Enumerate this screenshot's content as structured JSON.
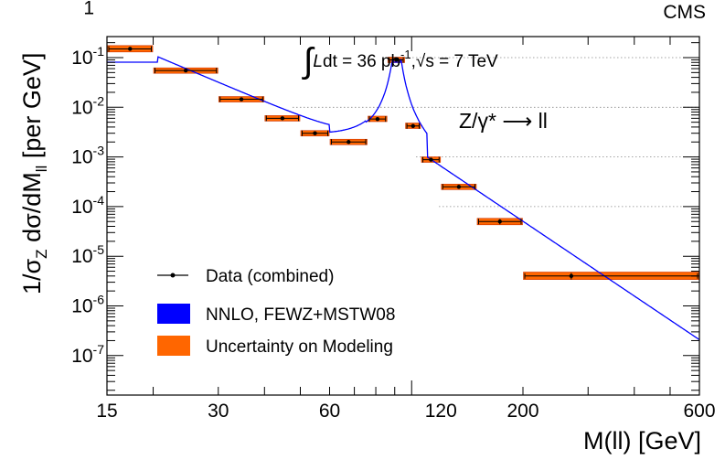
{
  "chart_data": {
    "type": "scatter",
    "corner_label": "CMS",
    "xlabel": "M(ll)  [GeV]",
    "ylabel_parts": {
      "a": "1/σ",
      "b": "Z",
      "c": " dσ/dM",
      "d": "ll",
      "e": " [per GeV]"
    },
    "annotation_lumi": {
      "integral": "∫",
      "L": "L",
      "rest": "dt = 36 pb",
      "sup": "-1",
      "sqrt_pre": ",",
      "sqrt_s": "√s",
      "tail": " = 7 TeV"
    },
    "annotation_process": "Z/γ* ⟶ ll",
    "x_scale": "log",
    "y_scale": "log",
    "xlim": [
      15,
      600
    ],
    "ylim": [
      3e-08,
      1
    ],
    "x_ticks": [
      15,
      30,
      60,
      120,
      200,
      600
    ],
    "y_ticks": [
      {
        "value": 1,
        "base": "1",
        "exp": ""
      },
      {
        "value": 0.1,
        "base": "10",
        "exp": "-1"
      },
      {
        "value": 0.01,
        "base": "10",
        "exp": "-2"
      },
      {
        "value": 0.001,
        "base": "10",
        "exp": "-3"
      },
      {
        "value": 0.0001,
        "base": "10",
        "exp": "-4"
      },
      {
        "value": 1e-05,
        "base": "10",
        "exp": "-5"
      },
      {
        "value": 1e-06,
        "base": "10",
        "exp": "-6"
      },
      {
        "value": 1e-07,
        "base": "10",
        "exp": "-7"
      }
    ],
    "series": [
      {
        "name": "Data (combined)",
        "points": [
          {
            "x_low": 15,
            "x_high": 20,
            "y": 0.15,
            "y_err": 0.01,
            "band_low": 0.13,
            "band_high": 0.175
          },
          {
            "x_low": 20,
            "x_high": 30,
            "y": 0.055,
            "y_err": 0.002,
            "band_low": 0.05,
            "band_high": 0.06
          },
          {
            "x_low": 30,
            "x_high": 40,
            "y": 0.0145,
            "y_err": 0.0005,
            "band_low": 0.0133,
            "band_high": 0.0158
          },
          {
            "x_low": 40,
            "x_high": 50,
            "y": 0.006,
            "y_err": 0.0002,
            "band_low": 0.0056,
            "band_high": 0.0064
          },
          {
            "x_low": 50,
            "x_high": 60,
            "y": 0.003,
            "y_err": 0.0001,
            "band_low": 0.0028,
            "band_high": 0.0032
          },
          {
            "x_low": 60,
            "x_high": 76,
            "y": 0.002,
            "y_err": 7e-05,
            "band_low": 0.00188,
            "band_high": 0.00213
          },
          {
            "x_low": 76,
            "x_high": 86,
            "y": 0.0058,
            "y_err": 0.0002,
            "band_low": 0.0055,
            "band_high": 0.0062
          },
          {
            "x_low": 86,
            "x_high": 96,
            "y": 0.09,
            "y_err": 0.003,
            "band_low": 0.086,
            "band_high": 0.094
          },
          {
            "x_low": 96,
            "x_high": 106,
            "y": 0.0042,
            "y_err": 0.00015,
            "band_low": 0.004,
            "band_high": 0.0045
          },
          {
            "x_low": 106,
            "x_high": 120,
            "y": 0.00088,
            "y_err": 4e-05,
            "band_low": 0.00083,
            "band_high": 0.00094
          },
          {
            "x_low": 120,
            "x_high": 150,
            "y": 0.00025,
            "y_err": 1e-05,
            "band_low": 0.000235,
            "band_high": 0.000265
          },
          {
            "x_low": 150,
            "x_high": 200,
            "y": 5e-05,
            "y_err": 6e-06,
            "band_low": 4.3e-05,
            "band_high": 5.8e-05
          },
          {
            "x_low": 200,
            "x_high": 600,
            "y": 4e-06,
            "y_err": 6e-07,
            "band_low": 3.4e-06,
            "band_high": 4.8e-06
          }
        ]
      }
    ],
    "legend": [
      {
        "label": "Data (combined)",
        "kind": "marker",
        "color": "#000000"
      },
      {
        "label": "NNLO, FEWZ+MSTW08",
        "kind": "box",
        "color": "#0000ff"
      },
      {
        "label": "Uncertainty on Modeling",
        "kind": "box",
        "color": "#ff6600"
      }
    ],
    "legend_position": "bottom-left",
    "grid": "dotted horizontal on right side",
    "colors": {
      "theory": "#0000ff",
      "band": "#ff6600",
      "band_edge": "#cc3300",
      "data": "#000000"
    }
  }
}
